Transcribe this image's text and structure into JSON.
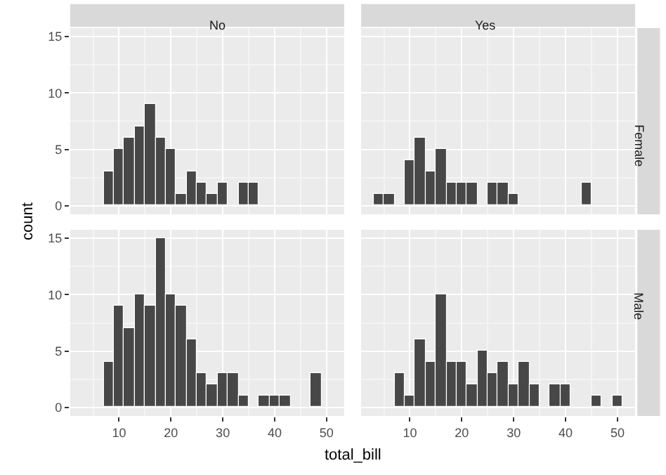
{
  "chart_data": [
    {
      "type": "histogram",
      "title": "No",
      "ylabel": "count",
      "bins": [
        3,
        5,
        7,
        9,
        11,
        13,
        15,
        17,
        19,
        21,
        23,
        25,
        27,
        29,
        31,
        33,
        35,
        37,
        39,
        41,
        43,
        45,
        47,
        49,
        51
      ],
      "values": [
        0,
        0,
        3,
        5,
        6,
        7,
        9,
        6,
        5,
        1,
        3,
        2,
        1,
        2,
        0,
        2,
        2,
        0,
        0,
        0,
        0,
        0,
        0,
        0
      ],
      "color": "#474747",
      "xlim": [
        0.6,
        53.4
      ],
      "ylim": [
        -0.75,
        15.75
      ],
      "xticks": [
        10,
        20,
        30,
        40,
        50
      ],
      "yticks": [
        0,
        5,
        10,
        15
      ],
      "grid": true,
      "tick_labels": "y"
    },
    {
      "type": "histogram",
      "title": "Yes",
      "y2label": "Female",
      "bins": [
        3,
        5,
        7,
        9,
        11,
        13,
        15,
        17,
        19,
        21,
        23,
        25,
        27,
        29,
        31,
        33,
        35,
        37,
        39,
        41,
        43,
        45,
        47,
        49,
        51
      ],
      "values": [
        1,
        1,
        0,
        4,
        6,
        3,
        5,
        2,
        2,
        2,
        0,
        2,
        2,
        1,
        0,
        0,
        0,
        0,
        0,
        0,
        2,
        0,
        0,
        0
      ],
      "color": "#474747",
      "xlim": [
        0.6,
        53.4
      ],
      "ylim": [
        -0.75,
        15.75
      ],
      "xticks": [
        10,
        20,
        30,
        40,
        50
      ],
      "yticks": [
        0,
        5,
        10,
        15
      ],
      "grid": true,
      "tick_labels": false
    },
    {
      "type": "histogram",
      "xlabel": "total_bill",
      "bins": [
        3,
        5,
        7,
        9,
        11,
        13,
        15,
        17,
        19,
        21,
        23,
        25,
        27,
        29,
        31,
        33,
        35,
        37,
        39,
        41,
        43,
        45,
        47,
        49,
        51
      ],
      "values": [
        0,
        0,
        4,
        9,
        7,
        10,
        9,
        15,
        10,
        9,
        6,
        3,
        2,
        3,
        3,
        1,
        0,
        1,
        1,
        1,
        0,
        0,
        3,
        0
      ],
      "color": "#474747",
      "xlim": [
        0.6,
        53.4
      ],
      "ylim": [
        -0.75,
        15.75
      ],
      "xticks": [
        10,
        20,
        30,
        40,
        50
      ],
      "yticks": [
        0,
        5,
        10,
        15
      ],
      "grid": true
    },
    {
      "type": "histogram",
      "y2label": "Male",
      "bins": [
        3,
        5,
        7,
        9,
        11,
        13,
        15,
        17,
        19,
        21,
        23,
        25,
        27,
        29,
        31,
        33,
        35,
        37,
        39,
        41,
        43,
        45,
        47,
        49,
        51
      ],
      "values": [
        0,
        0,
        3,
        1,
        6,
        4,
        10,
        4,
        4,
        2,
        5,
        3,
        4,
        2,
        4,
        2,
        0,
        2,
        2,
        0,
        0,
        1,
        0,
        1
      ],
      "color": "#474747",
      "xlim": [
        0.6,
        53.4
      ],
      "ylim": [
        -0.75,
        15.75
      ],
      "xticks": [
        10,
        20,
        30,
        40,
        50
      ],
      "yticks": [
        0,
        5,
        10,
        15
      ],
      "grid": true,
      "tick_labels": "x"
    }
  ]
}
